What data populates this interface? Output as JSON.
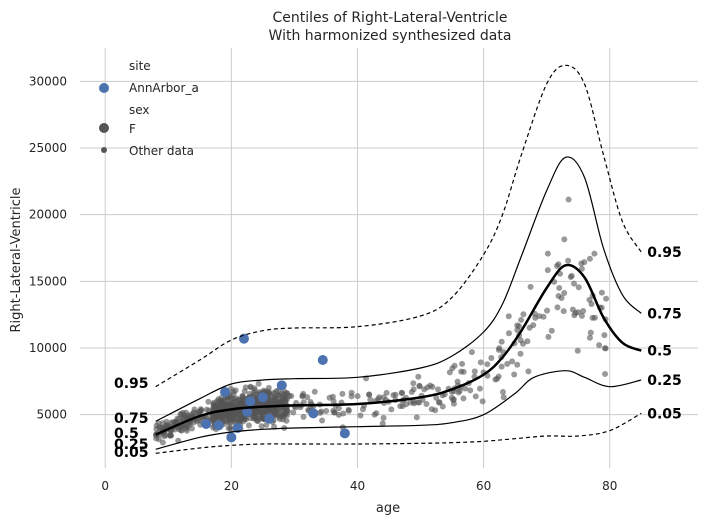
{
  "chart_data": {
    "type": "scatter",
    "title": "Centiles of Right-Lateral-Ventricle",
    "subtitle": "With harmonized synthesized data",
    "xlabel": "age",
    "ylabel": "Right-Lateral-Ventricle",
    "xlim": [
      -4,
      94
    ],
    "ylim": [
      1000,
      32500
    ],
    "xticks": [
      0,
      20,
      40,
      60,
      80
    ],
    "yticks": [
      5000,
      10000,
      15000,
      20000,
      25000,
      30000
    ],
    "grid": true,
    "legend": {
      "placement": "top-left",
      "site_title": "site",
      "site_entry": "AnnArbor_a",
      "sex_title": "sex",
      "sex_entry": "F",
      "other_entry": "Other data"
    },
    "colors": {
      "site_points": "#4c72b0",
      "other_points": "#555555",
      "centile_line": "#000000"
    },
    "centiles": [
      {
        "name": "0.05",
        "style": "dashed",
        "x": [
          8,
          15,
          20,
          25,
          30,
          40,
          50,
          55,
          60,
          65,
          70,
          75,
          80,
          85
        ],
        "y": [
          2100,
          2500,
          2700,
          2800,
          2800,
          2800,
          2850,
          2900,
          3000,
          3200,
          3400,
          3400,
          3800,
          5100
        ]
      },
      {
        "name": "0.25",
        "style": "thin",
        "x": [
          8,
          15,
          20,
          25,
          30,
          40,
          50,
          55,
          60,
          65,
          68,
          73,
          76,
          80,
          85
        ],
        "y": [
          2400,
          3300,
          3700,
          3900,
          4000,
          4100,
          4200,
          4400,
          5000,
          6600,
          7800,
          8300,
          7800,
          7100,
          7600
        ]
      },
      {
        "name": "0.5",
        "style": "thick",
        "x": [
          8,
          15,
          20,
          25,
          30,
          40,
          50,
          55,
          60,
          63,
          66,
          70,
          73,
          76,
          79,
          82,
          85
        ],
        "y": [
          3500,
          4900,
          5400,
          5600,
          5700,
          5800,
          6300,
          6900,
          8000,
          9300,
          11300,
          14500,
          16200,
          15300,
          12300,
          10400,
          9800
        ]
      },
      {
        "name": "0.75",
        "style": "thin",
        "x": [
          8,
          15,
          20,
          25,
          30,
          40,
          50,
          55,
          60,
          63,
          66,
          70,
          73,
          76,
          79,
          82,
          85
        ],
        "y": [
          4500,
          6200,
          7300,
          7600,
          7700,
          7800,
          8500,
          9400,
          11200,
          13300,
          16900,
          21800,
          24300,
          22800,
          17500,
          14000,
          12600
        ]
      },
      {
        "name": "0.95",
        "style": "dashed",
        "x": [
          8,
          15,
          20,
          25,
          30,
          40,
          50,
          55,
          60,
          63,
          66,
          70,
          73,
          76,
          79,
          82,
          85
        ],
        "y": [
          7100,
          9100,
          10600,
          11300,
          11500,
          11600,
          12400,
          13800,
          17000,
          20000,
          24500,
          29800,
          31200,
          29800,
          24500,
          19500,
          17200
        ]
      }
    ],
    "centile_start_labels": [
      "0.95",
      "0.75",
      "0.5",
      "0.25",
      "0.05"
    ],
    "site_points": {
      "x": [
        19,
        21,
        22,
        22.5,
        23,
        25,
        26,
        28,
        33,
        34.5,
        38,
        16,
        18,
        20
      ],
      "y": [
        6700,
        4000,
        10700,
        5200,
        6000,
        6300,
        4700,
        7200,
        5100,
        9100,
        3600,
        4300,
        4200,
        3300
      ]
    }
  }
}
